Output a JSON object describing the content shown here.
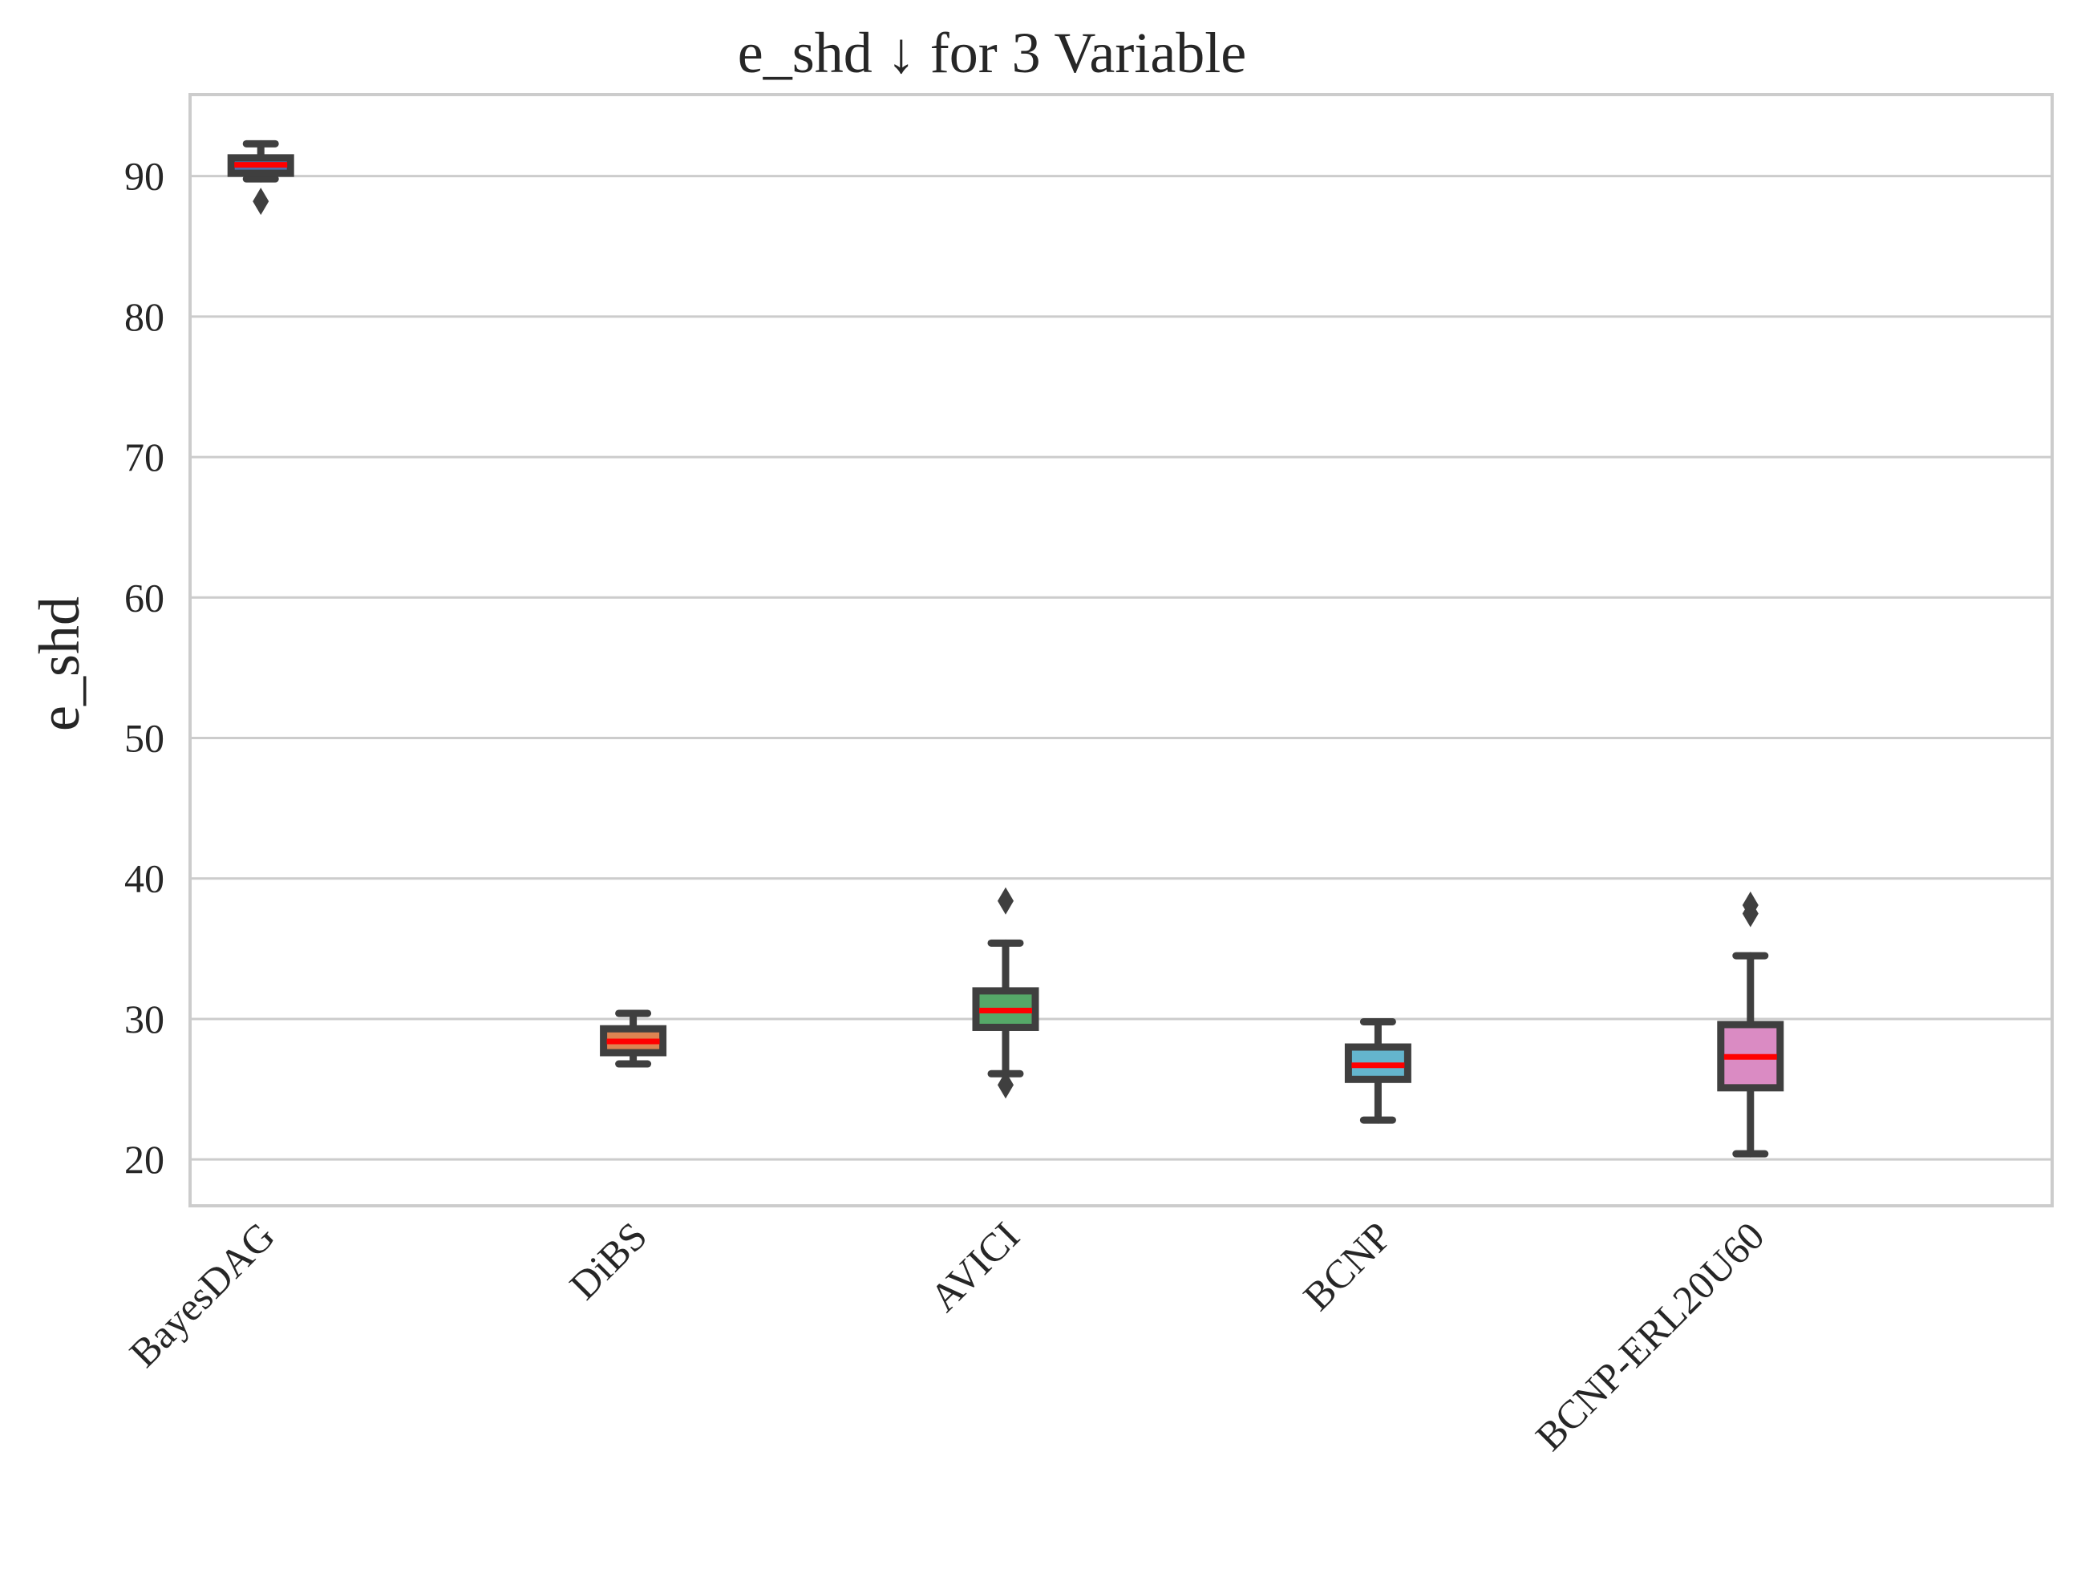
{
  "chart_data": {
    "type": "box",
    "title": "e_shd ↓ for 3 Variable",
    "xlabel": "",
    "ylabel": "e_shd",
    "ylim": [
      16.7,
      95.8
    ],
    "yticks": [
      20,
      30,
      40,
      50,
      60,
      70,
      80,
      90
    ],
    "grid": "horizontal",
    "categories": [
      "BayesDAG",
      "DiBS",
      "AVICI",
      "BCNP",
      "BCNP-ERL20U60"
    ],
    "boxes": [
      {
        "category": "BayesDAG",
        "whisker_low": 89.8,
        "q1": 90.2,
        "median": 90.8,
        "q3": 91.3,
        "whisker_high": 92.3,
        "outliers": [
          88.2
        ],
        "color": "#4c72b0"
      },
      {
        "category": "DiBS",
        "whisker_low": 26.8,
        "q1": 27.6,
        "median": 28.4,
        "q3": 29.3,
        "whisker_high": 30.4,
        "outliers": [],
        "color": "#dd8452"
      },
      {
        "category": "AVICI",
        "whisker_low": 26.1,
        "q1": 29.4,
        "median": 30.6,
        "q3": 32.0,
        "whisker_high": 35.4,
        "outliers": [
          38.4,
          25.3
        ],
        "color": "#55a868"
      },
      {
        "category": "BCNP",
        "whisker_low": 22.8,
        "q1": 25.7,
        "median": 26.7,
        "q3": 28.0,
        "whisker_high": 29.8,
        "outliers": [],
        "color": "#64b5cd"
      },
      {
        "category": "BCNP-ERL20U60",
        "whisker_low": 20.4,
        "q1": 25.1,
        "median": 27.3,
        "q3": 29.6,
        "whisker_high": 34.5,
        "outliers": [
          37.5,
          38.1
        ],
        "color": "#da8bc3"
      }
    ]
  }
}
